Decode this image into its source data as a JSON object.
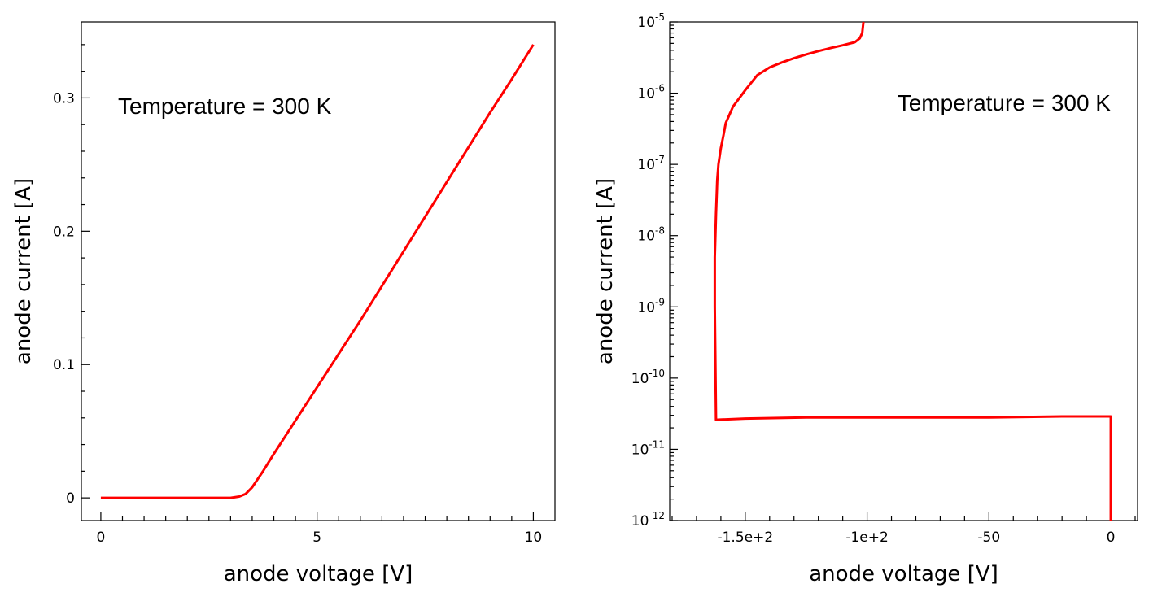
{
  "chart_data": [
    {
      "type": "line",
      "xlabel": "anode voltage [V]",
      "ylabel": "anode current [A]",
      "annotation": "Temperature = 300 K",
      "xlim": [
        -0.45,
        10.5
      ],
      "ylim": [
        -0.017,
        0.357
      ],
      "xticks": [
        {
          "value": 0,
          "label": "0"
        },
        {
          "value": 5,
          "label": "5"
        },
        {
          "value": 10,
          "label": "10"
        }
      ],
      "yticks": [
        {
          "value": 0,
          "label": "0"
        },
        {
          "value": 0.1,
          "label": "0.1"
        },
        {
          "value": 0.2,
          "label": "0.2"
        },
        {
          "value": 0.3,
          "label": "0.3"
        }
      ],
      "grid": false,
      "series": [
        {
          "color": "#ff0000",
          "x": [
            0,
            1,
            2,
            3,
            3.2,
            3.35,
            3.5,
            3.75,
            4.0,
            4.5,
            5.0,
            5.5,
            6.0,
            6.5,
            7.0,
            7.5,
            8.0,
            8.5,
            9.0,
            9.5,
            10.0
          ],
          "y": [
            0,
            0,
            0,
            0,
            0.001,
            0.003,
            0.008,
            0.02,
            0.033,
            0.058,
            0.083,
            0.108,
            0.133,
            0.159,
            0.185,
            0.211,
            0.237,
            0.263,
            0.289,
            0.314,
            0.34
          ]
        }
      ]
    },
    {
      "type": "line",
      "xlabel": "anode voltage [V]",
      "ylabel": "anode current [A]",
      "annotation": "Temperature = 300 K",
      "xlim": [
        -181,
        11
      ],
      "yscale": "log",
      "ylim": [
        1e-12,
        1e-05
      ],
      "xticks": [
        {
          "value": -150,
          "label": "-1.5e+2"
        },
        {
          "value": -100,
          "label": "-1e+2"
        },
        {
          "value": -50,
          "label": "-50"
        },
        {
          "value": 0,
          "label": "0"
        }
      ],
      "yticks": [
        {
          "value": 1e-12,
          "base": "10",
          "exp": "-12"
        },
        {
          "value": 1e-11,
          "base": "10",
          "exp": "-11"
        },
        {
          "value": 1e-10,
          "base": "10",
          "exp": "-10"
        },
        {
          "value": 1e-09,
          "base": "10",
          "exp": "-9"
        },
        {
          "value": 1e-08,
          "base": "10",
          "exp": "-8"
        },
        {
          "value": 1e-07,
          "base": "10",
          "exp": "-7"
        },
        {
          "value": 1e-06,
          "base": "10",
          "exp": "-6"
        },
        {
          "value": 1e-05,
          "base": "10",
          "exp": "-5"
        }
      ],
      "grid": false,
      "series": [
        {
          "color": "#ff0000",
          "x": [
            0,
            0,
            -20,
            -50,
            -100,
            -125,
            -150,
            -162,
            -162.5,
            -162.5,
            -162,
            -161.5,
            -161,
            -160,
            -159,
            -158,
            -155,
            -150,
            -145,
            -140,
            -135,
            -130,
            -125,
            -120,
            -115,
            -110,
            -105,
            -103,
            -102,
            -101.5
          ],
          "y": [
            1e-12,
            2.9e-11,
            2.9e-11,
            2.8e-11,
            2.8e-11,
            2.8e-11,
            2.7e-11,
            2.6e-11,
            1e-09,
            5e-09,
            2e-08,
            6e-08,
            1e-07,
            1.7e-07,
            2.5e-07,
            3.8e-07,
            6.5e-07,
            1.1e-06,
            1.8e-06,
            2.3e-06,
            2.7e-06,
            3.1e-06,
            3.5e-06,
            3.9e-06,
            4.3e-06,
            4.7e-06,
            5.2e-06,
            5.9e-06,
            7e-06,
            1e-05
          ]
        }
      ]
    }
  ]
}
